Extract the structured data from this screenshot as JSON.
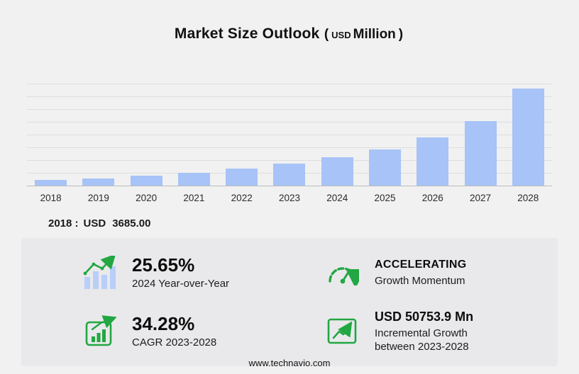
{
  "title": {
    "main": "Market Size Outlook",
    "paren_open": "(",
    "currency": "USD",
    "unit": "Million",
    "paren_close": ")"
  },
  "chart_data": {
    "type": "bar",
    "categories": [
      "2018",
      "2019",
      "2020",
      "2021",
      "2022",
      "2023",
      "2024",
      "2025",
      "2026",
      "2027",
      "2028"
    ],
    "values": [
      3685,
      4900,
      6500,
      8700,
      11600,
      15080,
      18948,
      24500,
      32400,
      43800,
      65834
    ],
    "title": "Market Size Outlook (USD Million)",
    "xlabel": "",
    "ylabel": "",
    "ylim": [
      0,
      70000
    ],
    "grid": true,
    "legend": false,
    "bar_color": "#a7c3f7"
  },
  "annotation": {
    "year": "2018 :",
    "currency": "USD",
    "value": "3685.00"
  },
  "stats": [
    {
      "value": "25.65%",
      "label": "2024 Year-over-Year",
      "icon": "bar-chart-growth-icon"
    },
    {
      "value": "ACCELERATING",
      "label": "Growth Momentum",
      "icon": "speedometer-icon"
    },
    {
      "value": "34.28%",
      "label": "CAGR 2023-2028",
      "icon": "chart-box-icon"
    },
    {
      "value": "USD 50753.9 Mn",
      "label_line1": "Incremental Growth",
      "label_line2": "between 2023-2028",
      "icon": "line-chart-icon"
    }
  ],
  "footer": {
    "url": "www.technavio.com"
  },
  "colors": {
    "accent_green": "#22a742",
    "bar_blue": "#a7c3f7",
    "bar_light_blue": "#b9cef8",
    "background": "#f1f1f2",
    "panel": "#e9e9eb"
  }
}
